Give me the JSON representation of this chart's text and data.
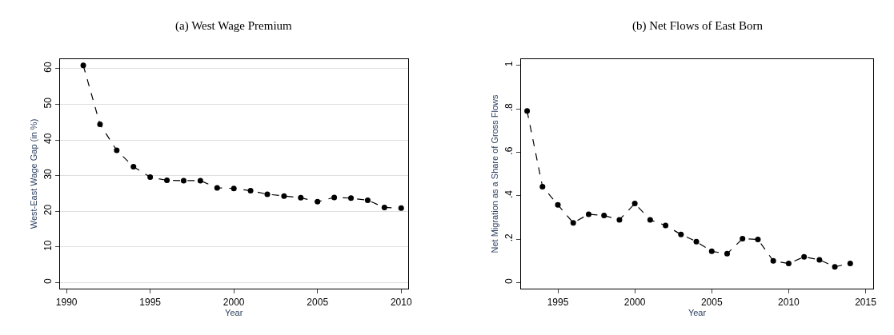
{
  "chart_data": [
    {
      "type": "line",
      "title": "(a) West Wage Premium",
      "xlabel": "Year",
      "ylabel": "West-East Wage Gap (in %)",
      "x": [
        1991,
        1992,
        1993,
        1994,
        1995,
        1996,
        1997,
        1998,
        1999,
        2000,
        2001,
        2002,
        2003,
        2004,
        2005,
        2006,
        2007,
        2008,
        2009,
        2010
      ],
      "series": [
        {
          "color": "#000000",
          "values": [
            60.9,
            44.4,
            37.1,
            32.5,
            29.6,
            28.7,
            28.6,
            28.6,
            26.6,
            26.4,
            25.8,
            24.8,
            24.3,
            23.8,
            22.7,
            23.9,
            23.7,
            23.1,
            21.1,
            20.9
          ]
        }
      ],
      "xlim": [
        1989.6,
        2010.4
      ],
      "ylim": [
        -1.7,
        62.7
      ],
      "xticks": [
        1990,
        1995,
        2000,
        2005,
        2010
      ],
      "yticks": [
        0,
        10,
        20,
        30,
        40,
        50,
        60
      ],
      "grid": "y",
      "marker": "circle",
      "line_style": "dashed"
    },
    {
      "type": "line",
      "title": "(b) Net Flows of East Born",
      "xlabel": "Year",
      "ylabel": "Net Migration as a Share of Gross Flows",
      "x": [
        1993,
        1994,
        1995,
        1996,
        1997,
        1998,
        1999,
        2000,
        2001,
        2002,
        2003,
        2004,
        2005,
        2006,
        2007,
        2008,
        2009,
        2010,
        2011,
        2012,
        2013,
        2014
      ],
      "series": [
        {
          "color": "#000000",
          "values": [
            0.79,
            0.442,
            0.358,
            0.275,
            0.315,
            0.309,
            0.289,
            0.364,
            0.289,
            0.263,
            0.222,
            0.189,
            0.144,
            0.133,
            0.202,
            0.199,
            0.1,
            0.088,
            0.119,
            0.105,
            0.073,
            0.088
          ]
        }
      ],
      "xlim": [
        1992.6,
        2015.5
      ],
      "ylim": [
        -0.028,
        1.029
      ],
      "xticks": [
        1995,
        2000,
        2005,
        2010,
        2015
      ],
      "yticks": [
        {
          "value": 0,
          "label": "0"
        },
        {
          "value": 0.2,
          "label": ".2"
        },
        {
          "value": 0.4,
          "label": ".4"
        },
        {
          "value": 0.6,
          "label": ".6"
        },
        {
          "value": 0.8,
          "label": ".8"
        },
        {
          "value": 1,
          "label": "1"
        }
      ],
      "grid": false,
      "marker": "circle",
      "line_style": "dashed"
    }
  ]
}
